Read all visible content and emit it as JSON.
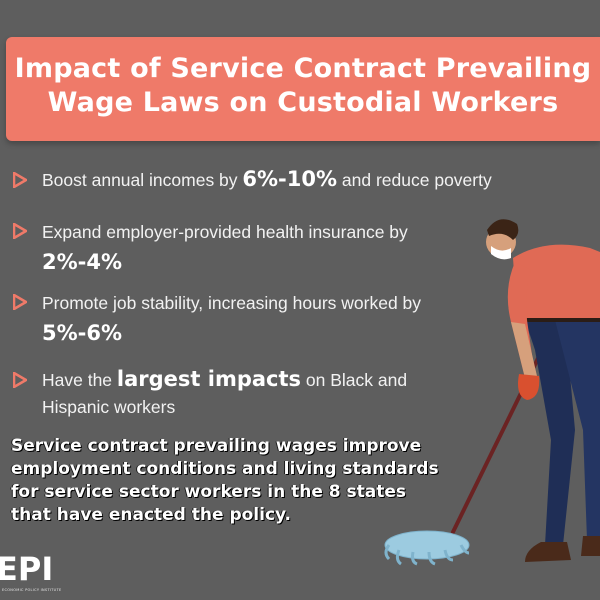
{
  "title": {
    "line1": "Impact of Service Contract Prevailing",
    "line2": "Wage Laws on Custodial Workers"
  },
  "bullets": [
    {
      "icon": "arrow-right-icon",
      "before": "Boost annual incomes by ",
      "highlight": "6%-10%",
      "after": " and reduce poverty"
    },
    {
      "icon": "arrow-right-icon",
      "before": "Expand employer-provided health insurance by ",
      "highlight": "2%-4%",
      "after": ""
    },
    {
      "icon": "arrow-right-icon",
      "before": "Promote job stability, increasing hours worked by ",
      "highlight": "5%-6%",
      "after": ""
    },
    {
      "icon": "arrow-right-icon",
      "before": "Have the ",
      "highlight": "largest impacts",
      "after": " on Black and Hispanic workers"
    }
  ],
  "summary": {
    "line1": "Service contract prevailing wages improve",
    "line2": "employment conditions and living standards",
    "line3": "for service sector workers in the 8 states",
    "line4": "that have enacted the policy."
  },
  "logo": {
    "text": "EPI",
    "subtext": "ECONOMIC POLICY INSTITUTE"
  },
  "colors": {
    "background": "#5e5e5e",
    "banner": "#ef7a69",
    "bullet_arrow": "#ef7a69",
    "text": "#f2f2f2"
  }
}
